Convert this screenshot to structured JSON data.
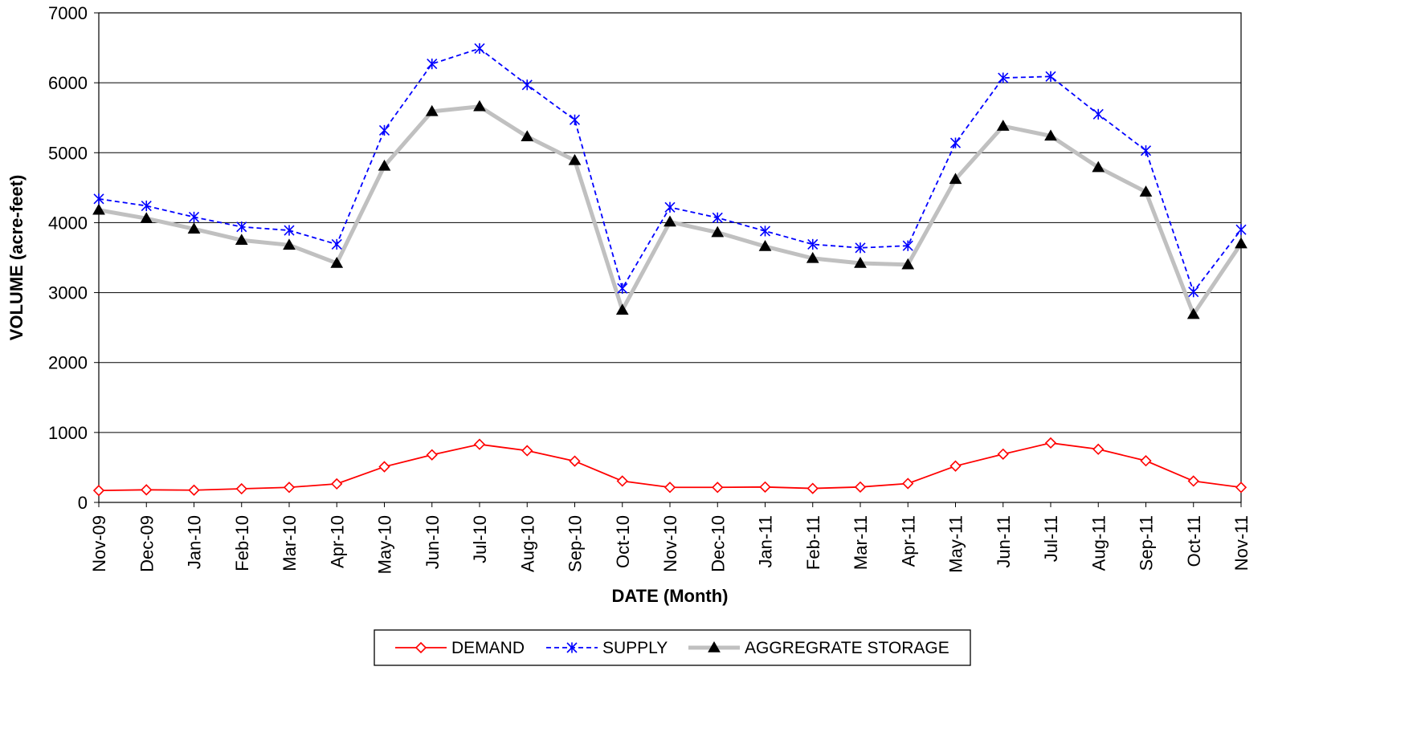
{
  "chart_data": {
    "type": "line",
    "title": "",
    "xlabel": "DATE (Month)",
    "ylabel": "VOLUME (acre-feet)",
    "ylim": [
      0,
      7000
    ],
    "yticks": [
      0,
      1000,
      2000,
      3000,
      4000,
      5000,
      6000,
      7000
    ],
    "grid": "horizontal",
    "legend_position": "bottom",
    "categories": [
      "Nov-09",
      "Dec-09",
      "Jan-10",
      "Feb-10",
      "Mar-10",
      "Apr-10",
      "May-10",
      "Jun-10",
      "Jul-10",
      "Aug-10",
      "Sep-10",
      "Oct-10",
      "Nov-10",
      "Dec-10",
      "Jan-11",
      "Feb-11",
      "Mar-11",
      "Apr-11",
      "May-11",
      "Jun-11",
      "Jul-11",
      "Aug-11",
      "Sep-11",
      "Oct-11",
      "Nov-11"
    ],
    "series": [
      {
        "name": "DEMAND",
        "color": "#ff0000",
        "marker": "diamond-open",
        "line_style": "solid",
        "values": [
          170,
          180,
          175,
          195,
          215,
          265,
          510,
          680,
          830,
          740,
          590,
          305,
          215,
          215,
          220,
          200,
          220,
          270,
          520,
          690,
          850,
          760,
          595,
          305,
          215
        ]
      },
      {
        "name": "SUPPLY",
        "color": "#0000ff",
        "marker": "asterisk",
        "line_style": "dashed",
        "values": [
          4340,
          4240,
          4080,
          3940,
          3890,
          3690,
          5320,
          6270,
          6490,
          5970,
          5470,
          3060,
          4220,
          4070,
          3880,
          3690,
          3640,
          3670,
          5140,
          6070,
          6090,
          5550,
          5030,
          3010,
          3900
        ]
      },
      {
        "name": "AGGREGRATE STORAGE",
        "color": "#c0c0c0",
        "marker_color": "#000000",
        "marker": "triangle",
        "line_style": "solid-thick",
        "values": [
          4180,
          4060,
          3910,
          3750,
          3680,
          3420,
          4810,
          5590,
          5660,
          5230,
          4890,
          2750,
          4010,
          3860,
          3660,
          3490,
          3420,
          3400,
          4620,
          5380,
          5240,
          4790,
          4440,
          2690,
          3700
        ]
      }
    ]
  }
}
